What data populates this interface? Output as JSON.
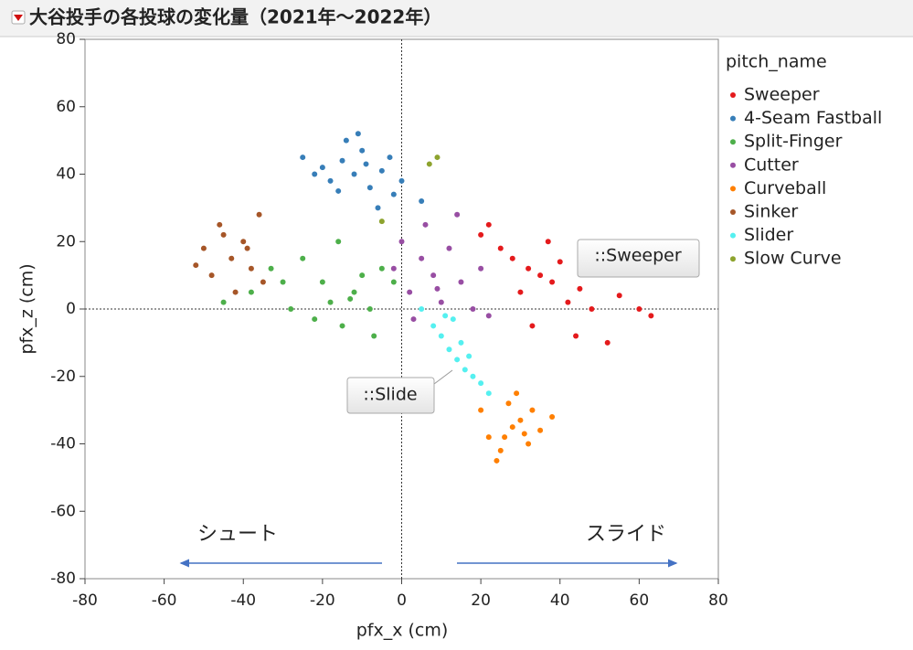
{
  "chart_data": {
    "type": "scatter",
    "title": "大谷投手の各投球の変化量（2021年～2022年）",
    "x_label": "pfx_x (cm)",
    "y_label": "pfx_z (cm)",
    "legend_title": "pitch_name",
    "xlim": [
      -80,
      80
    ],
    "ylim": [
      -80,
      80
    ],
    "xticks": [
      -80,
      -60,
      -40,
      -20,
      0,
      20,
      40,
      60,
      80
    ],
    "yticks": [
      -80,
      -60,
      -40,
      -20,
      0,
      20,
      40,
      60,
      80
    ],
    "annotations": [
      "シュート",
      "スライド"
    ],
    "point_labels": [
      "::Sweeper",
      "::Slide"
    ],
    "series": [
      {
        "name": "Sweeper",
        "color": "#e41a1c",
        "x": [
          20,
          25,
          28,
          30,
          32,
          35,
          38,
          40,
          42,
          45,
          48,
          50,
          55,
          60,
          63,
          22,
          33,
          37,
          44,
          52
        ],
        "y": [
          22,
          18,
          15,
          5,
          12,
          10,
          8,
          14,
          2,
          6,
          0,
          12,
          4,
          0,
          -2,
          25,
          -5,
          20,
          -8,
          -10
        ]
      },
      {
        "name": "4-Seam Fastball",
        "color": "#377eb8",
        "x": [
          -25,
          -20,
          -18,
          -15,
          -12,
          -10,
          -8,
          -5,
          -2,
          0,
          5,
          -14,
          -22,
          -6,
          -3,
          -16,
          -11,
          -9
        ],
        "y": [
          45,
          42,
          38,
          44,
          40,
          47,
          36,
          41,
          34,
          38,
          32,
          50,
          40,
          30,
          45,
          35,
          52,
          43
        ]
      },
      {
        "name": "Split-Finger",
        "color": "#4daf4a",
        "x": [
          -45,
          -38,
          -33,
          -28,
          -25,
          -20,
          -18,
          -15,
          -12,
          -10,
          -8,
          -5,
          -2,
          -22,
          -16,
          -13,
          -30,
          -7
        ],
        "y": [
          2,
          5,
          12,
          0,
          15,
          8,
          2,
          -5,
          5,
          10,
          0,
          12,
          8,
          -3,
          20,
          3,
          8,
          -8
        ]
      },
      {
        "name": "Cutter",
        "color": "#984ea3",
        "x": [
          -2,
          0,
          2,
          5,
          8,
          10,
          12,
          15,
          18,
          20,
          22,
          6,
          3,
          14,
          9
        ],
        "y": [
          12,
          20,
          5,
          15,
          10,
          2,
          18,
          8,
          0,
          12,
          -2,
          25,
          -3,
          28,
          6
        ]
      },
      {
        "name": "Curveball",
        "color": "#ff7f00",
        "x": [
          20,
          22,
          25,
          27,
          28,
          30,
          32,
          35,
          38,
          24,
          29,
          33,
          26,
          31
        ],
        "y": [
          -30,
          -38,
          -42,
          -28,
          -35,
          -33,
          -40,
          -36,
          -32,
          -45,
          -25,
          -30,
          -38,
          -37
        ]
      },
      {
        "name": "Sinker",
        "color": "#a65628",
        "x": [
          -52,
          -50,
          -48,
          -45,
          -43,
          -40,
          -38,
          -36,
          -35,
          -42,
          -46,
          -39
        ],
        "y": [
          13,
          18,
          10,
          22,
          15,
          20,
          12,
          28,
          8,
          5,
          25,
          18
        ]
      },
      {
        "name": "Slider",
        "color": "#55f0f0",
        "x": [
          5,
          8,
          10,
          12,
          14,
          16,
          18,
          20,
          22,
          15,
          13,
          11,
          17
        ],
        "y": [
          0,
          -5,
          -8,
          -12,
          -15,
          -18,
          -20,
          -22,
          -25,
          -10,
          -3,
          -2,
          -14
        ]
      },
      {
        "name": "Slow Curve",
        "color": "#8da32e",
        "x": [
          7,
          9,
          -5
        ],
        "y": [
          43,
          45,
          26
        ]
      }
    ]
  }
}
